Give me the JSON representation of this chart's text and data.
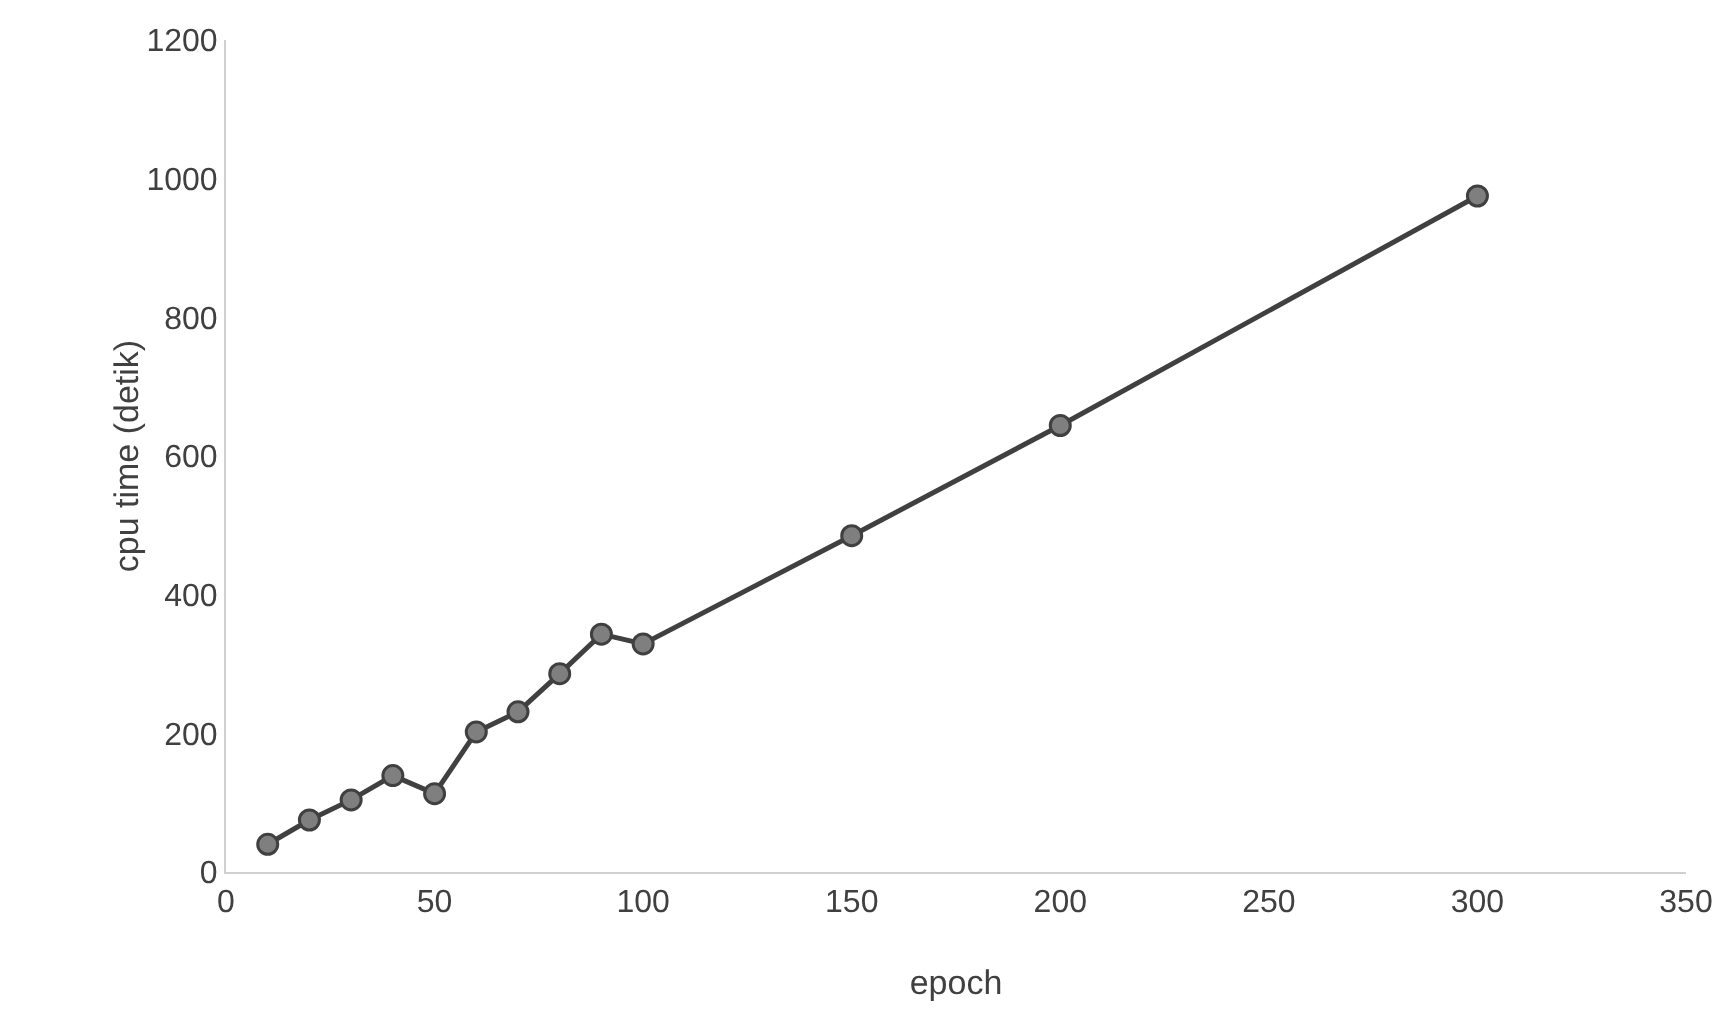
{
  "chart_data": {
    "type": "line",
    "xlabel": "epoch",
    "ylabel": "cpu time (detik)",
    "x": [
      10,
      20,
      30,
      40,
      50,
      60,
      70,
      80,
      90,
      100,
      150,
      200,
      300
    ],
    "series": [
      {
        "color": "#404040",
        "values": [
          40,
          75,
          104,
          139,
          113,
          202,
          231,
          286,
          343,
          329,
          485,
          644,
          975
        ]
      }
    ],
    "xlim": [
      0,
      350
    ],
    "xticks": [
      0,
      50,
      100,
      150,
      200,
      250,
      300,
      350
    ],
    "ylim": [
      0,
      1200
    ],
    "yticks": [
      0,
      200,
      400,
      600,
      800,
      1000,
      1200
    ],
    "marker": "circle",
    "line_style": "solid"
  }
}
